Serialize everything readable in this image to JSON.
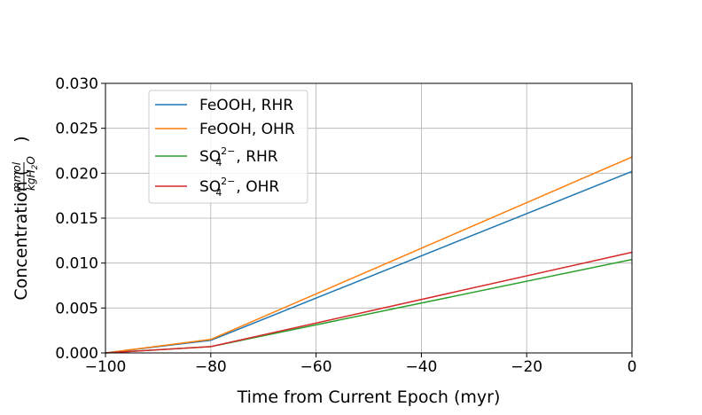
{
  "chart_data": {
    "type": "line",
    "title": "",
    "xlabel": "Time from Current Epoch (myr)",
    "ylabel": "Concentration",
    "ylabel_unit_num": "mmol",
    "ylabel_unit_den": "kgH",
    "ylabel_unit_den_sub": "2",
    "ylabel_unit_den_tail": "O",
    "xlim": [
      -100,
      0
    ],
    "ylim": [
      0.0,
      0.03
    ],
    "x_ticks": [
      -100,
      -80,
      -60,
      -40,
      -20,
      0
    ],
    "x_tick_labels": [
      "−100",
      "−80",
      "−60",
      "−40",
      "−20",
      "0"
    ],
    "y_ticks": [
      0.0,
      0.005,
      0.01,
      0.015,
      0.02,
      0.025,
      0.03
    ],
    "y_tick_labels": [
      "0.000",
      "0.005",
      "0.010",
      "0.015",
      "0.020",
      "0.025",
      "0.030"
    ],
    "grid": true,
    "legend_position": "top-left",
    "x": [
      -100,
      -80,
      0
    ],
    "series": [
      {
        "name": "FeOOH, RHR",
        "label_main": "FeOOH, RHR",
        "color": "#1f77b4",
        "values": [
          0.0,
          0.0014,
          0.0202
        ]
      },
      {
        "name": "FeOOH, OHR",
        "label_main": "FeOOH, OHR",
        "color": "#ff7f0e",
        "values": [
          0.0,
          0.0015,
          0.0218
        ]
      },
      {
        "name": "SO4 2-, RHR",
        "label_main": "SO",
        "label_sub": "4",
        "label_sup": "2−",
        "label_tail": ", RHR",
        "color": "#2ca02c",
        "values": [
          0.0,
          0.0007,
          0.0104
        ]
      },
      {
        "name": "SO4 2-, OHR",
        "label_main": "SO",
        "label_sub": "4",
        "label_sup": "2−",
        "label_tail": ", OHR",
        "color": "#d62728",
        "values": [
          0.0,
          0.0007,
          0.0112
        ]
      }
    ]
  }
}
